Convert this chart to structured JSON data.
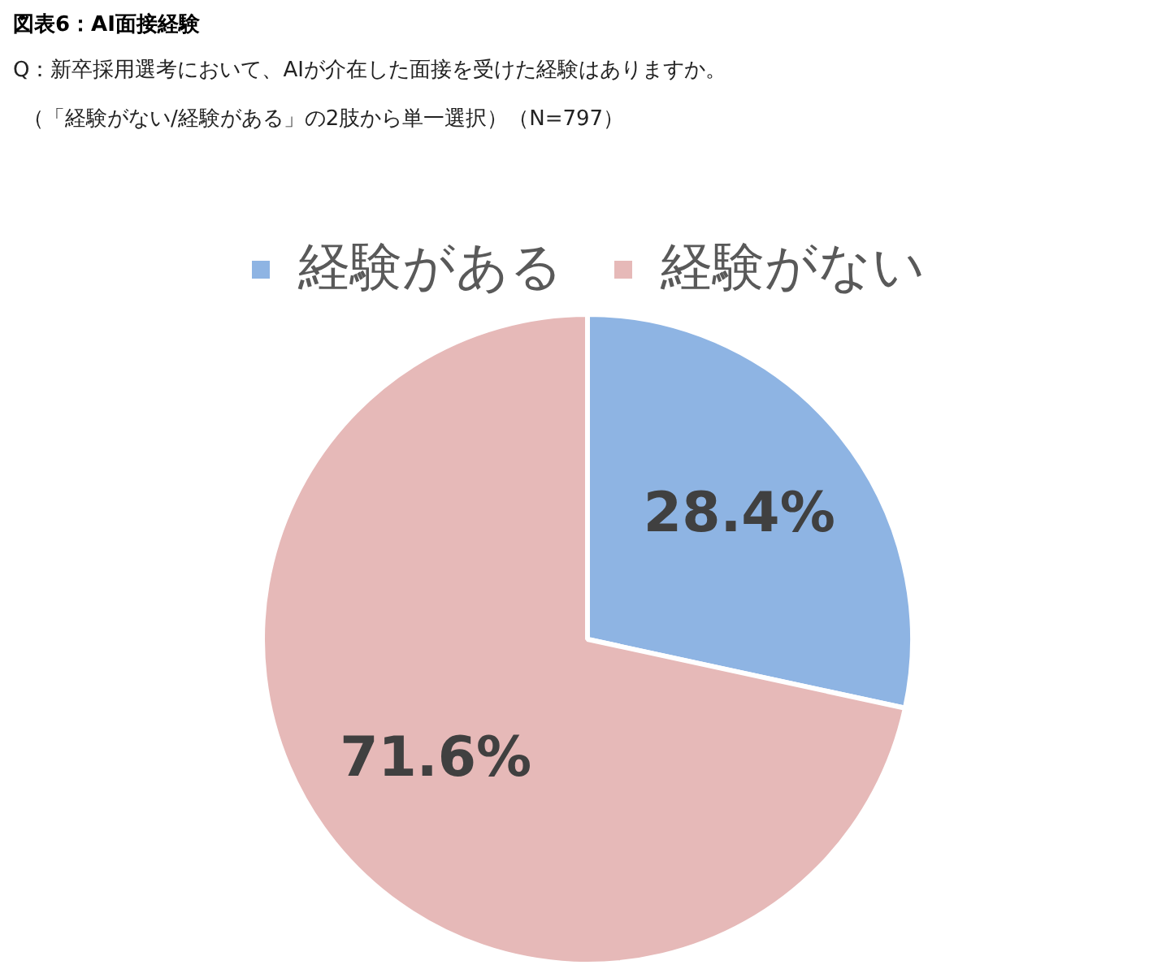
{
  "chart_data": {
    "type": "pie",
    "title": "図表6：AI面接経験",
    "subtitle": "Q：新卒採用選考において、AIが介在した面接を受けた経験はありますか。",
    "annotations": [
      "（「経験がない/経験がある」の2肢から単一選択）（N=797）"
    ],
    "categories": [
      "経験がある",
      "経験がない"
    ],
    "values": [
      28.4,
      71.6
    ],
    "colors": [
      "#8eb4e3",
      "#e6b9b8"
    ],
    "value_labels": [
      "28.4%",
      "71.6%"
    ],
    "legend": "top"
  }
}
